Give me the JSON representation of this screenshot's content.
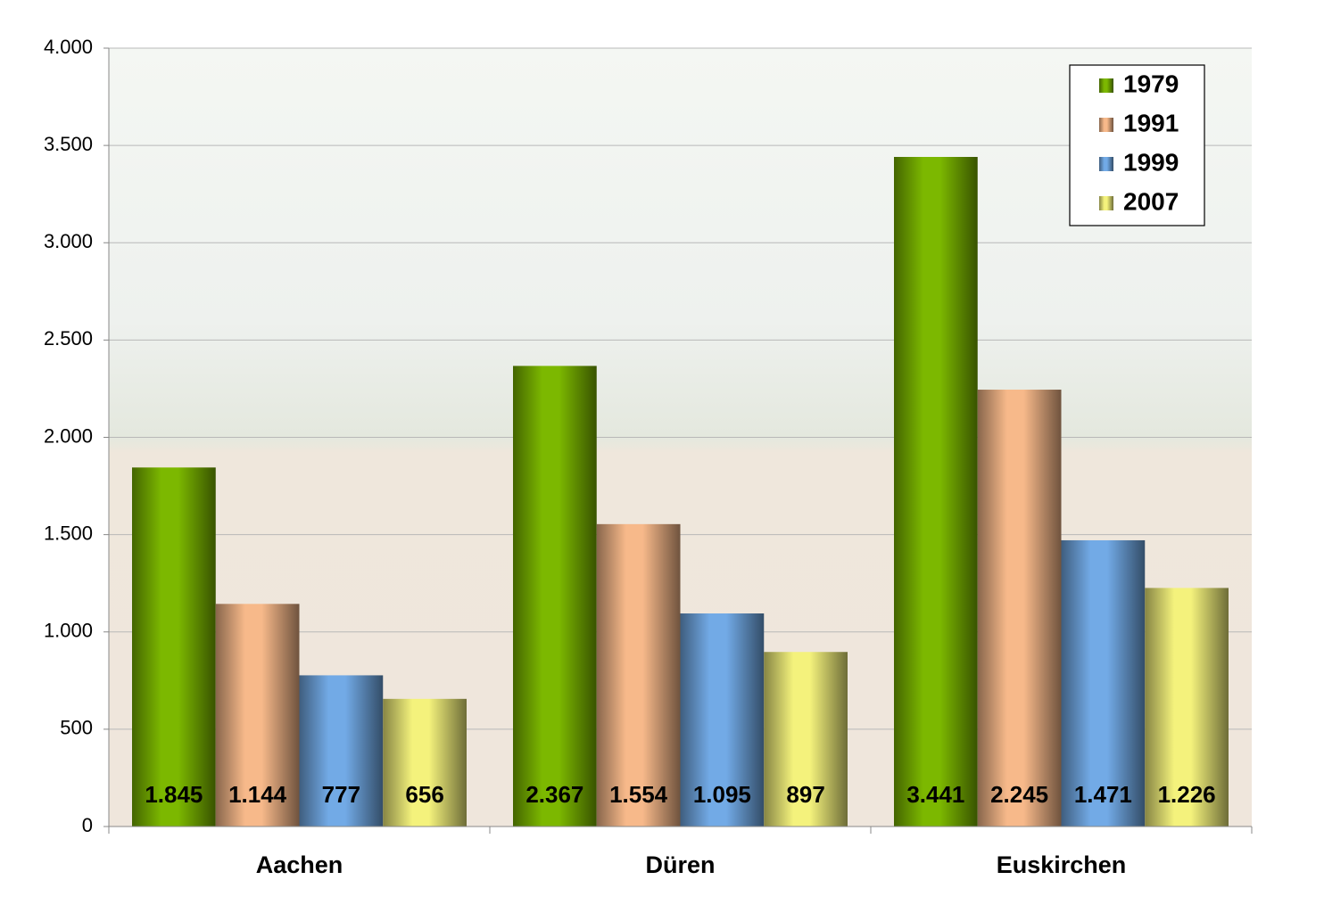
{
  "chart_data": {
    "type": "bar",
    "categories": [
      "Aachen",
      "Düren",
      "Euskirchen"
    ],
    "series": [
      {
        "name": "1979",
        "color": "#7cb800",
        "values": [
          1845,
          2367,
          3441
        ],
        "value_labels": [
          "1.845",
          "2.367",
          "3.441"
        ]
      },
      {
        "name": "1991",
        "color": "#f7b98a",
        "values": [
          1144,
          1554,
          2245
        ],
        "value_labels": [
          "1.144",
          "1.554",
          "2.245"
        ]
      },
      {
        "name": "1999",
        "color": "#72aae6",
        "values": [
          777,
          1095,
          1471
        ],
        "value_labels": [
          "777",
          "1.095",
          "1.471"
        ]
      },
      {
        "name": "2007",
        "color": "#f4f27c",
        "values": [
          656,
          897,
          1226
        ],
        "value_labels": [
          "656",
          "897",
          "1.226"
        ]
      }
    ],
    "ylim": [
      0,
      4000
    ],
    "yticks": [
      0,
      500,
      {
        "value": 1000,
        "label": "1.000"
      },
      {
        "value": 1500,
        "label": "1.500"
      },
      {
        "value": 2000,
        "label": "2.000"
      },
      {
        "value": 2500,
        "label": "2.500"
      },
      {
        "value": 3000,
        "label": "3.000"
      },
      {
        "value": 3500,
        "label": "3.500"
      },
      {
        "value": 4000,
        "label": "4.000"
      }
    ],
    "grid": true,
    "legend": "top-right"
  }
}
